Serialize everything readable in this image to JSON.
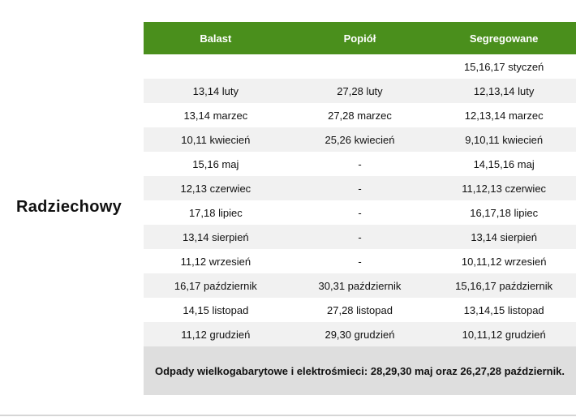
{
  "location": "Radziechowy",
  "table": {
    "headers": [
      "Balast",
      "Popiół",
      "Segregowane"
    ],
    "rows": [
      [
        "",
        "",
        "15,16,17 styczeń"
      ],
      [
        "13,14 luty",
        "27,28 luty",
        "12,13,14 luty"
      ],
      [
        "13,14 marzec",
        "27,28 marzec",
        "12,13,14 marzec"
      ],
      [
        "10,11 kwiecień",
        "25,26 kwiecień",
        "9,10,11 kwiecień"
      ],
      [
        "15,16 maj",
        "-",
        "14,15,16 maj"
      ],
      [
        "12,13 czerwiec",
        "-",
        "11,12,13 czerwiec"
      ],
      [
        "17,18 lipiec",
        "-",
        "16,17,18 lipiec"
      ],
      [
        "13,14 sierpień",
        "-",
        "13,14 sierpień"
      ],
      [
        "11,12 wrzesień",
        "-",
        "10,11,12 wrzesień"
      ],
      [
        "16,17 październik",
        "30,31 październik",
        "15,16,17 październik"
      ],
      [
        "14,15 listopad",
        "27,28 listopad",
        "13,14,15 listopad"
      ],
      [
        "11,12 grudzień",
        "29,30 grudzień",
        "10,11,12 grudzień"
      ]
    ],
    "note": "Odpady wielkogabarytowe i elektrośmieci: 28,29,30 maj oraz 26,27,28 październik."
  },
  "colors": {
    "header_bg": "#4a8f1c",
    "alt_row": "#f1f1f1",
    "note_bg": "#dedede"
  }
}
